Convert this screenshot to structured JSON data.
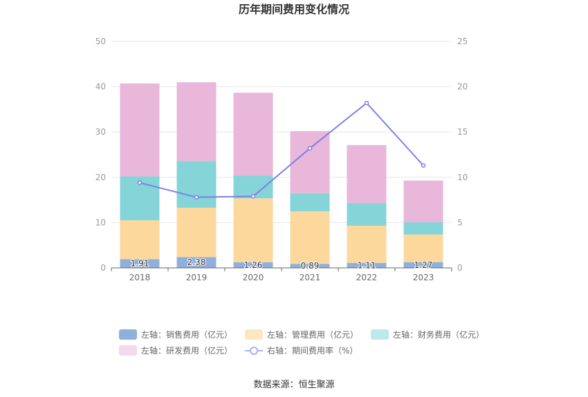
{
  "chart_data": {
    "type": "bar",
    "stacked": true,
    "title": "历年期间费用变化情况",
    "categories": [
      "2018",
      "2019",
      "2020",
      "2021",
      "2022",
      "2023"
    ],
    "y_left": {
      "min": 0,
      "max": 50,
      "ticks": [
        0,
        10,
        20,
        30,
        40,
        50
      ]
    },
    "y_right": {
      "min": 0,
      "max": 25,
      "ticks": [
        0,
        5,
        10,
        15,
        20,
        25
      ]
    },
    "grid": true,
    "legend_position": "bottom",
    "series": [
      {
        "name": "左轴：销售费用（亿元）",
        "axis": "left",
        "type": "bar",
        "color": "#8fb0dc",
        "values": [
          1.91,
          2.38,
          1.26,
          0.89,
          1.11,
          1.27
        ],
        "labels": [
          "1.91",
          "2.38",
          "1.26",
          "0.89",
          "1.11",
          "1.27"
        ]
      },
      {
        "name": "左轴：管理费用（亿元）",
        "axis": "left",
        "type": "bar",
        "color": "#fdd89c",
        "values": [
          8.6,
          10.9,
          14.1,
          11.6,
          8.2,
          6.1
        ]
      },
      {
        "name": "左轴：财务费用（亿元）",
        "axis": "left",
        "type": "bar",
        "color": "#84d4d8",
        "values": [
          9.7,
          10.3,
          5.0,
          4.0,
          5.0,
          2.7
        ]
      },
      {
        "name": "左轴：研发费用（亿元）",
        "axis": "left",
        "type": "bar",
        "color": "#e8b7d9",
        "values": [
          20.5,
          17.4,
          18.3,
          13.7,
          12.8,
          9.2
        ]
      },
      {
        "name": "右轴：期间费用率（%）",
        "axis": "right",
        "type": "line",
        "color": "#7b80e8",
        "values": [
          9.4,
          7.8,
          7.9,
          13.2,
          18.2,
          11.3
        ]
      }
    ],
    "legend_colors": [
      "#8fb0dc",
      "#fde7c2",
      "#bde9ec",
      "#f4d8ec",
      "#aab0f0"
    ]
  },
  "source": "数据来源：恒生聚源"
}
